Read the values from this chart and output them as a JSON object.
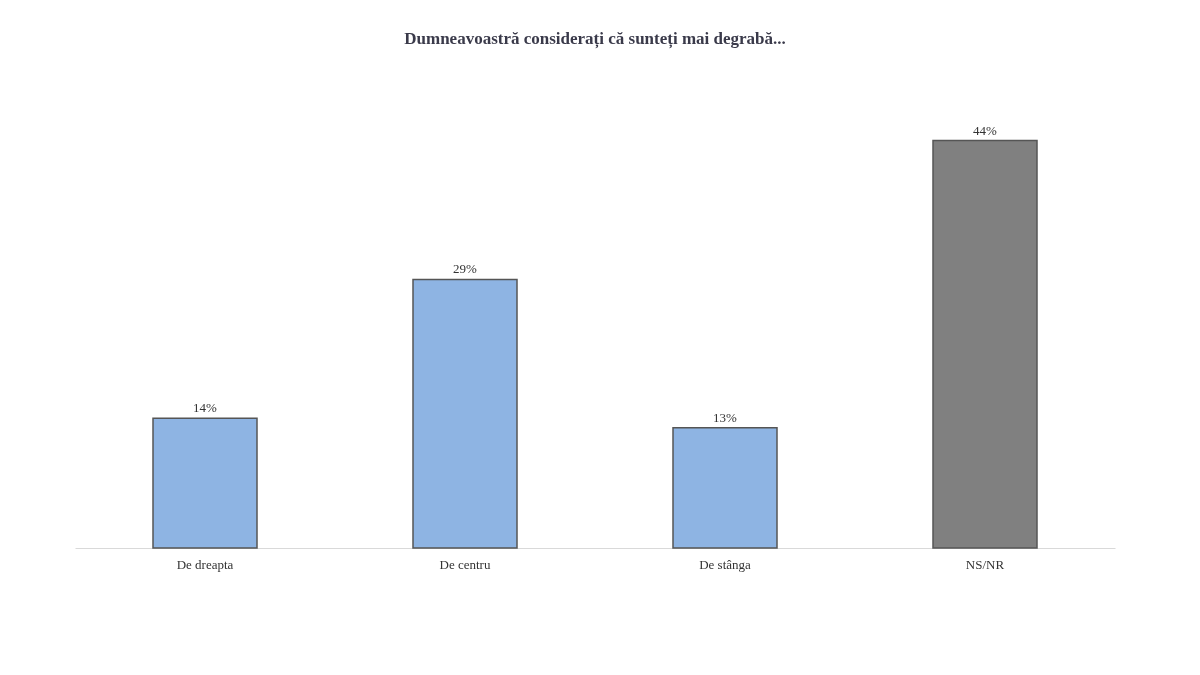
{
  "chart_data": {
    "type": "bar",
    "title": "Dumneavoastră considerați că sunteți mai degrabă...",
    "categories": [
      "De dreapta",
      "De centru",
      "De stânga",
      "NS/NR"
    ],
    "values": [
      14,
      29,
      13,
      44
    ],
    "colors": [
      "#8eb4e3",
      "#8eb4e3",
      "#8eb4e3",
      "#808080"
    ],
    "value_labels": [
      "14%",
      "29%",
      "13%",
      "44%"
    ],
    "grid": false
  }
}
